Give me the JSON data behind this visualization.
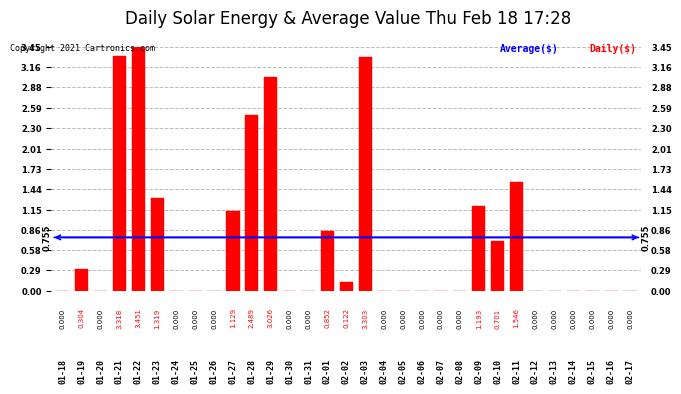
{
  "title": "Daily Solar Energy & Average Value Thu Feb 18 17:28",
  "copyright": "Copyright 2021 Cartronics.com",
  "legend_average": "Average($)",
  "legend_daily": "Daily($)",
  "categories": [
    "01-18",
    "01-19",
    "01-20",
    "01-21",
    "01-22",
    "01-23",
    "01-24",
    "01-25",
    "01-26",
    "01-27",
    "01-28",
    "01-29",
    "01-30",
    "01-31",
    "02-01",
    "02-02",
    "02-03",
    "02-04",
    "02-05",
    "02-06",
    "02-07",
    "02-08",
    "02-09",
    "02-10",
    "02-11",
    "02-12",
    "02-13",
    "02-14",
    "02-15",
    "02-16",
    "02-17"
  ],
  "values": [
    0.0,
    0.304,
    0.0,
    3.318,
    3.451,
    1.319,
    0.0,
    0.0,
    0.0,
    1.129,
    2.489,
    3.026,
    0.0,
    0.0,
    0.852,
    0.122,
    3.303,
    0.0,
    0.0,
    0.0,
    0.0,
    0.0,
    1.193,
    0.701,
    1.546,
    0.0,
    0.0,
    0.0,
    0.0,
    0.0,
    0.0
  ],
  "average_value": 0.755,
  "bar_color": "#ff0000",
  "average_line_color": "#0000ff",
  "ylim_min": 0.0,
  "ylim_max": 3.45,
  "yticks": [
    0.0,
    0.29,
    0.58,
    0.86,
    1.15,
    1.44,
    1.73,
    2.01,
    2.3,
    2.59,
    2.88,
    3.16,
    3.45
  ],
  "background_color": "#ffffff",
  "grid_color": "#bbbbbb",
  "title_fontsize": 12,
  "label_fontsize": 6,
  "value_fontsize": 5,
  "avg_label_fontsize": 6,
  "copyright_fontsize": 6,
  "legend_fontsize": 7
}
